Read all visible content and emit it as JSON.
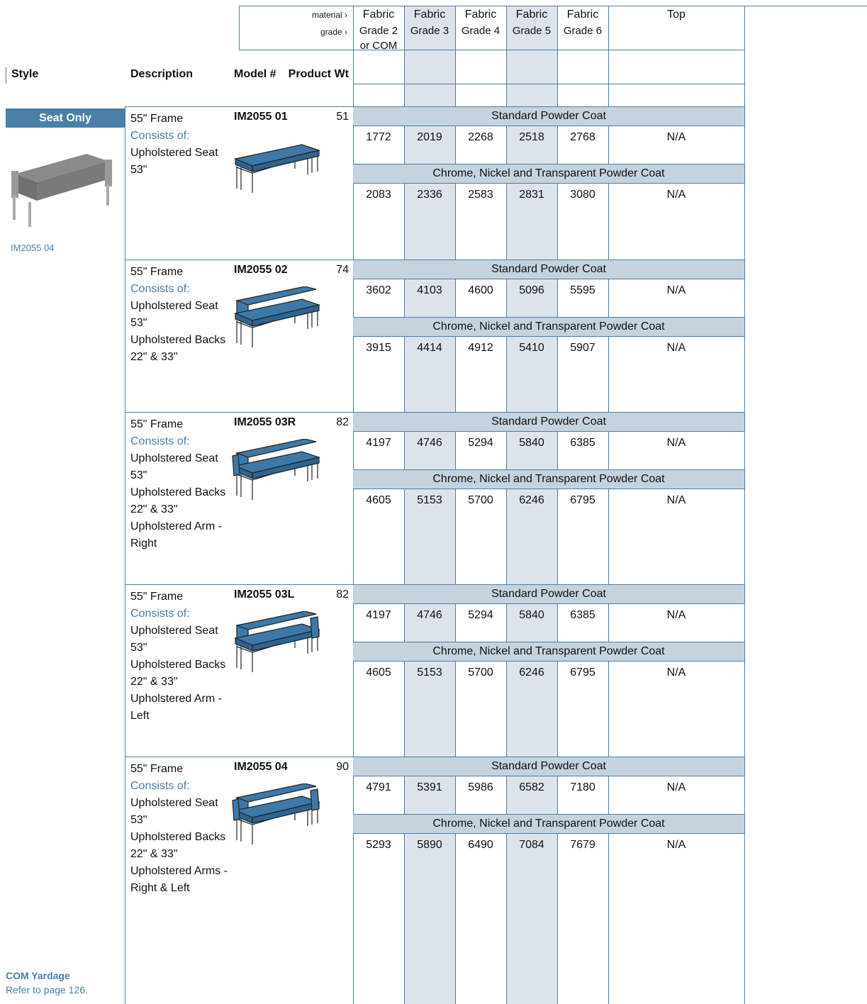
{
  "header": {
    "material_label": "material ›",
    "grade_label": "grade ›",
    "columns": [
      {
        "material": "Fabric",
        "grade": "Grade 2 or COM"
      },
      {
        "material": "Fabric",
        "grade": "Grade 3"
      },
      {
        "material": "Fabric",
        "grade": "Grade 4"
      },
      {
        "material": "Fabric",
        "grade": "Grade 5"
      },
      {
        "material": "Fabric",
        "grade": "Grade 6"
      },
      {
        "material": "Top"
      }
    ],
    "style": "Style",
    "description": "Description",
    "model": "Model #",
    "weight": "Product Wt"
  },
  "style": {
    "name": "Seat Only",
    "image_caption": "IM2055 04"
  },
  "products": [
    {
      "frame": "55\" Frame",
      "consists_label": "Consists of:",
      "components": [
        "Upholstered Seat 53\""
      ],
      "model": "IM2055 01",
      "weight": 51,
      "finishes": [
        {
          "name": "Standard Powder Coat",
          "prices": [
            1772,
            2019,
            2268,
            2518,
            2768
          ],
          "top": "N/A"
        },
        {
          "name": "Chrome, Nickel and Transparent Powder Coat",
          "prices": [
            2083,
            2336,
            2583,
            2831,
            3080
          ],
          "top": "N/A"
        }
      ]
    },
    {
      "frame": "55\" Frame",
      "consists_label": "Consists of:",
      "components": [
        "Upholstered Seat 53\"",
        "Upholstered Backs 22\" & 33\""
      ],
      "model": "IM2055 02",
      "weight": 74,
      "finishes": [
        {
          "name": "Standard Powder Coat",
          "prices": [
            3602,
            4103,
            4600,
            5096,
            5595
          ],
          "top": "N/A"
        },
        {
          "name": "Chrome, Nickel and Transparent Powder Coat",
          "prices": [
            3915,
            4414,
            4912,
            5410,
            5907
          ],
          "top": "N/A"
        }
      ]
    },
    {
      "frame": "55\" Frame",
      "consists_label": "Consists of:",
      "components": [
        "Upholstered Seat 53\"",
        "Upholstered Backs 22\" & 33\"",
        "Upholstered Arm - Right"
      ],
      "model": "IM2055 03R",
      "weight": 82,
      "finishes": [
        {
          "name": "Standard Powder Coat",
          "prices": [
            4197,
            4746,
            5294,
            5840,
            6385
          ],
          "top": "N/A"
        },
        {
          "name": "Chrome, Nickel and Transparent Powder Coat",
          "prices": [
            4605,
            5153,
            5700,
            6246,
            6795
          ],
          "top": "N/A"
        }
      ]
    },
    {
      "frame": "55\" Frame",
      "consists_label": "Consists of:",
      "components": [
        "Upholstered Seat 53\"",
        "Upholstered Backs 22\" & 33\"",
        "Upholstered Arm - Left"
      ],
      "model": "IM2055 03L",
      "weight": 82,
      "finishes": [
        {
          "name": "Standard Powder Coat",
          "prices": [
            4197,
            4746,
            5294,
            5840,
            6385
          ],
          "top": "N/A"
        },
        {
          "name": "Chrome, Nickel and Transparent Powder Coat",
          "prices": [
            4605,
            5153,
            5700,
            6246,
            6795
          ],
          "top": "N/A"
        }
      ]
    },
    {
      "frame": "55\" Frame",
      "consists_label": "Consists of:",
      "components": [
        "Upholstered Seat 53\"",
        "Upholstered Backs 22\" & 33\"",
        "Upholstered Arms - Right & Left"
      ],
      "model": "IM2055 04",
      "weight": 90,
      "finishes": [
        {
          "name": "Standard Powder Coat",
          "prices": [
            4791,
            5391,
            5986,
            6582,
            7180
          ],
          "top": "N/A"
        },
        {
          "name": "Chrome, Nickel and Transparent Powder Coat",
          "prices": [
            5293,
            5890,
            6490,
            7084,
            7679
          ],
          "top": "N/A"
        }
      ]
    }
  ],
  "footer": {
    "title": "COM Yardage",
    "text": "Refer to page 126."
  }
}
